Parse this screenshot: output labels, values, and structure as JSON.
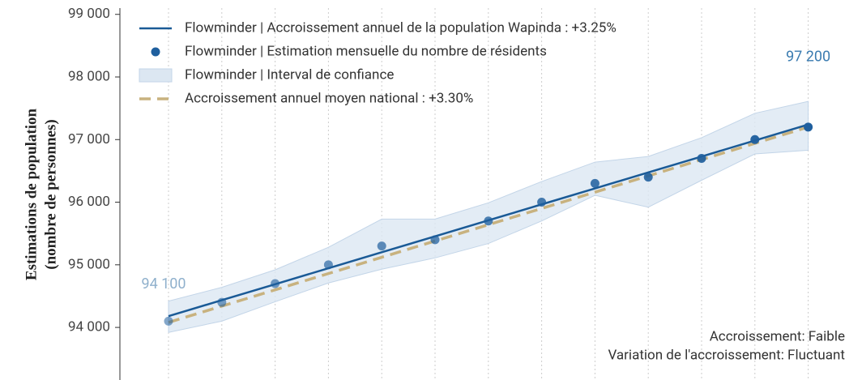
{
  "chart_data": {
    "type": "line",
    "y_label": [
      "Estimations de population",
      "(nombre de personnes)"
    ],
    "categories": [
      null,
      null,
      null,
      null,
      null,
      null,
      null,
      null,
      null,
      null,
      null,
      null,
      null
    ],
    "series": [
      {
        "name": "Flowminder | Accroissement annuel de la population Wapinda : +3.25%",
        "style": "line",
        "color": "#1a5a96",
        "values": [
          94180,
          94435,
          94690,
          94945,
          95200,
          95455,
          95710,
          95965,
          96220,
          96475,
          96730,
          96985,
          97240
        ]
      },
      {
        "name": "Flowminder | Estimation mensuelle du nombre de résidents",
        "style": "points",
        "color": "#1f5f9e",
        "values": [
          94100,
          94400,
          94700,
          95000,
          95300,
          95400,
          95700,
          96000,
          96300,
          96400,
          96700,
          97000,
          97200
        ],
        "value_labels": [
          "94 100",
          null,
          null,
          null,
          null,
          null,
          null,
          null,
          null,
          null,
          null,
          null,
          "97 200"
        ]
      },
      {
        "name": "Flowminder | Interval de confiance",
        "style": "band",
        "color": "#dce7f2",
        "lower": [
          93920,
          94100,
          94410,
          94710,
          94930,
          95110,
          95340,
          95700,
          96110,
          95920,
          96350,
          96770,
          96830
        ],
        "upper": [
          94420,
          94640,
          94920,
          95280,
          95730,
          95730,
          95990,
          96330,
          96640,
          96730,
          97030,
          97420,
          97610
        ]
      },
      {
        "name": "Accroissement annuel moyen national : +3.30%",
        "style": "dashed",
        "color": "#c8b27f",
        "values": [
          94080,
          94340,
          94600,
          94860,
          95120,
          95380,
          95640,
          95900,
          96160,
          96420,
          96680,
          96940,
          97200
        ]
      }
    ],
    "ylim": [
      93160,
      99100
    ],
    "yticks": [
      {
        "value": 94000,
        "label": "94 000"
      },
      {
        "value": 95000,
        "label": "95 000"
      },
      {
        "value": 96000,
        "label": "96 000"
      },
      {
        "value": 97000,
        "label": "97 000"
      },
      {
        "value": 98000,
        "label": "98 000"
      },
      {
        "value": 99000,
        "label": "99 000"
      }
    ],
    "annotations": [
      "Accroissement: Faible",
      "Variation de l'accroissement: Fluctuant"
    ],
    "legend": "upper left"
  }
}
